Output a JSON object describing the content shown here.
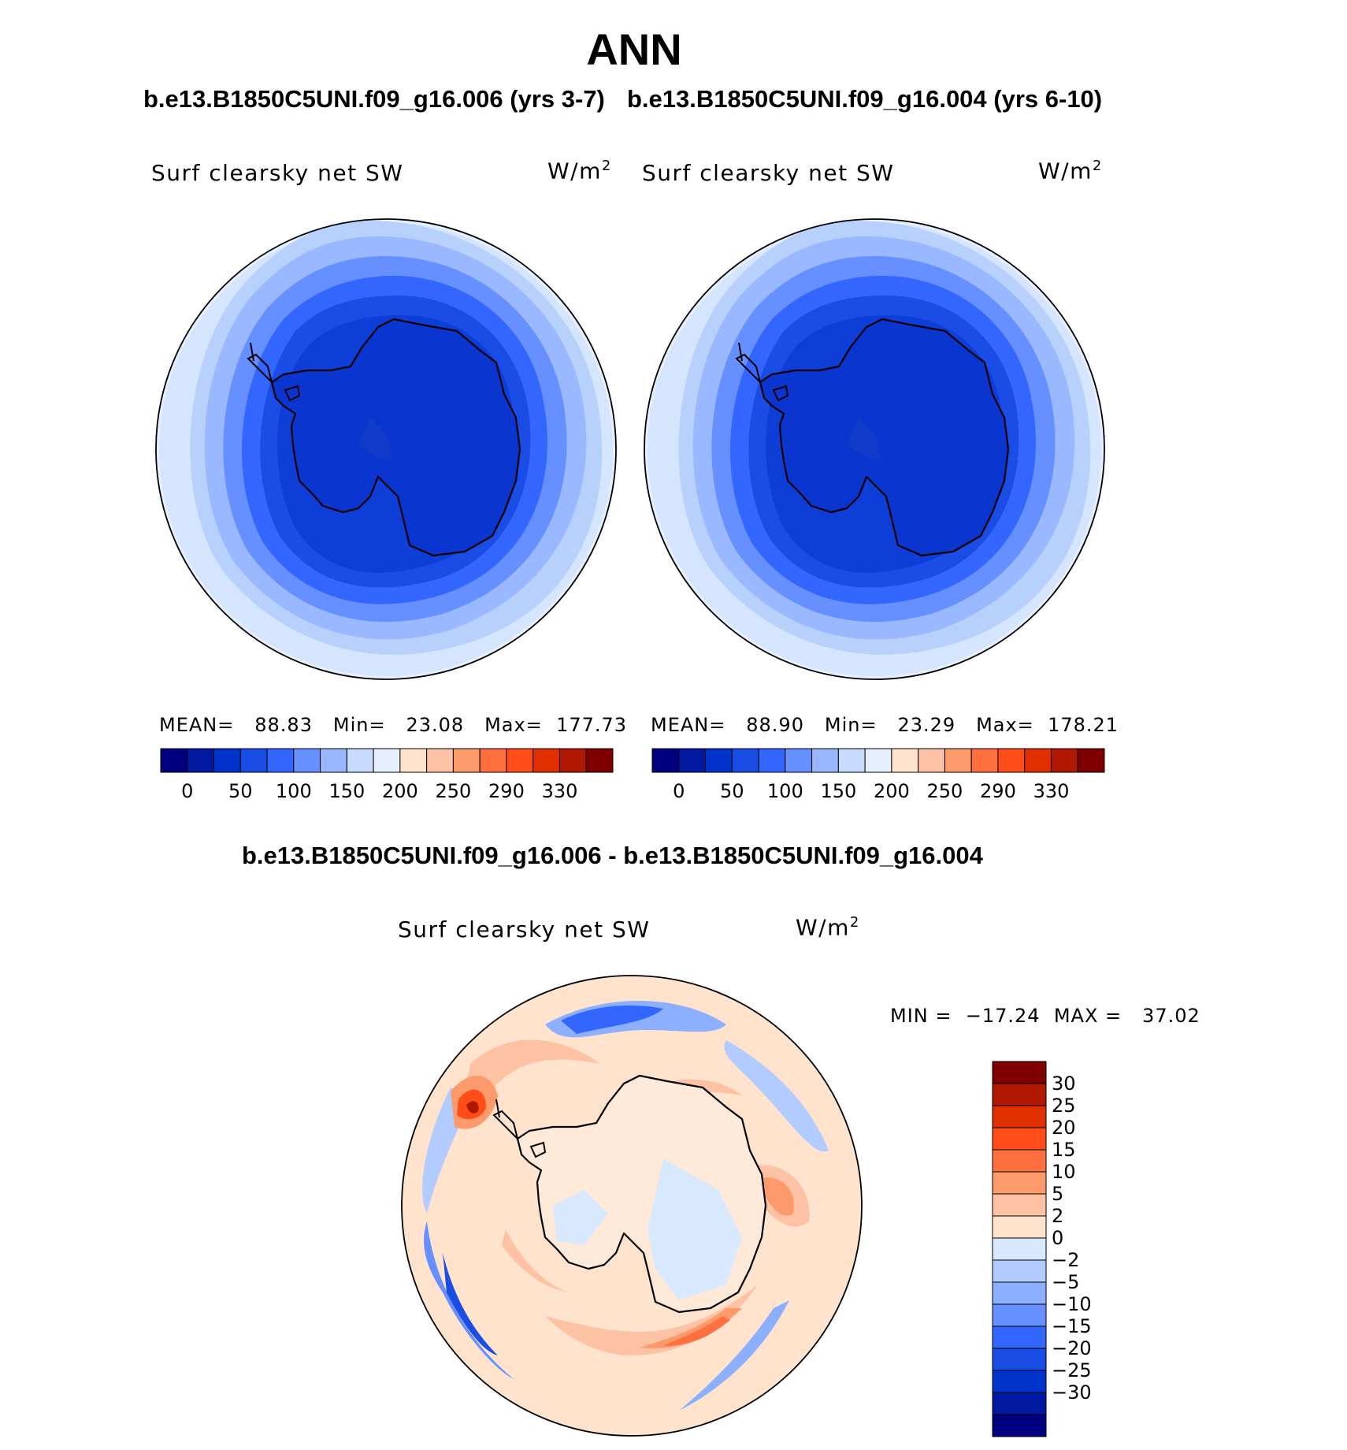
{
  "title": "ANN",
  "header_left": "b.e13.B1850C5UNI.f09_g16.006 (yrs 3-7)",
  "header_right": "b.e13.B1850C5UNI.f09_g16.004 (yrs 6-10)",
  "diff_title": "b.e13.B1850C5UNI.f09_g16.006 - b.e13.B1850C5UNI.f09_g16.004",
  "variable": "Surf clearsky net SW",
  "unit": "W/m",
  "unit_exp": "2",
  "panel_left": {
    "mean_label": "MEAN=",
    "mean": "88.83",
    "min_label": "Min=",
    "min": "23.08",
    "max_label": "Max=",
    "max": "177.73"
  },
  "panel_right": {
    "mean_label": "MEAN=",
    "mean": "88.90",
    "min_label": "Min=",
    "min": "23.29",
    "max_label": "Max=",
    "max": "178.21"
  },
  "diff_stats": {
    "min_label": "MIN =",
    "min": "−17.24",
    "max_label": "MAX =",
    "max": "37.02"
  },
  "abs_colorbar": {
    "colors": [
      "#000080",
      "#0019a0",
      "#0033cc",
      "#1a4de6",
      "#3366ff",
      "#6690ff",
      "#99b8ff",
      "#c6dbfd",
      "#e6efff",
      "#ffe3cc",
      "#fdc2a3",
      "#fd9a6c",
      "#ff7040",
      "#ff4d1a",
      "#e03000",
      "#b01800",
      "#800000"
    ],
    "labels": [
      "0",
      "50",
      "100",
      "150",
      "200",
      "250",
      "290",
      "330"
    ]
  },
  "diff_colorbar": {
    "colors": [
      "#800000",
      "#b01800",
      "#e03000",
      "#ff4d1a",
      "#ff7040",
      "#fd9a6c",
      "#fdc2a3",
      "#ffe3cc",
      "#d8e8fd",
      "#b3ccff",
      "#8cb0ff",
      "#6690ff",
      "#3366ff",
      "#1a4de6",
      "#0033cc",
      "#0019a0",
      "#000080"
    ],
    "labels": [
      "30",
      "25",
      "20",
      "15",
      "10",
      "5",
      "2",
      "0",
      "−2",
      "−5",
      "−10",
      "−15",
      "−20",
      "−25",
      "−30"
    ]
  }
}
